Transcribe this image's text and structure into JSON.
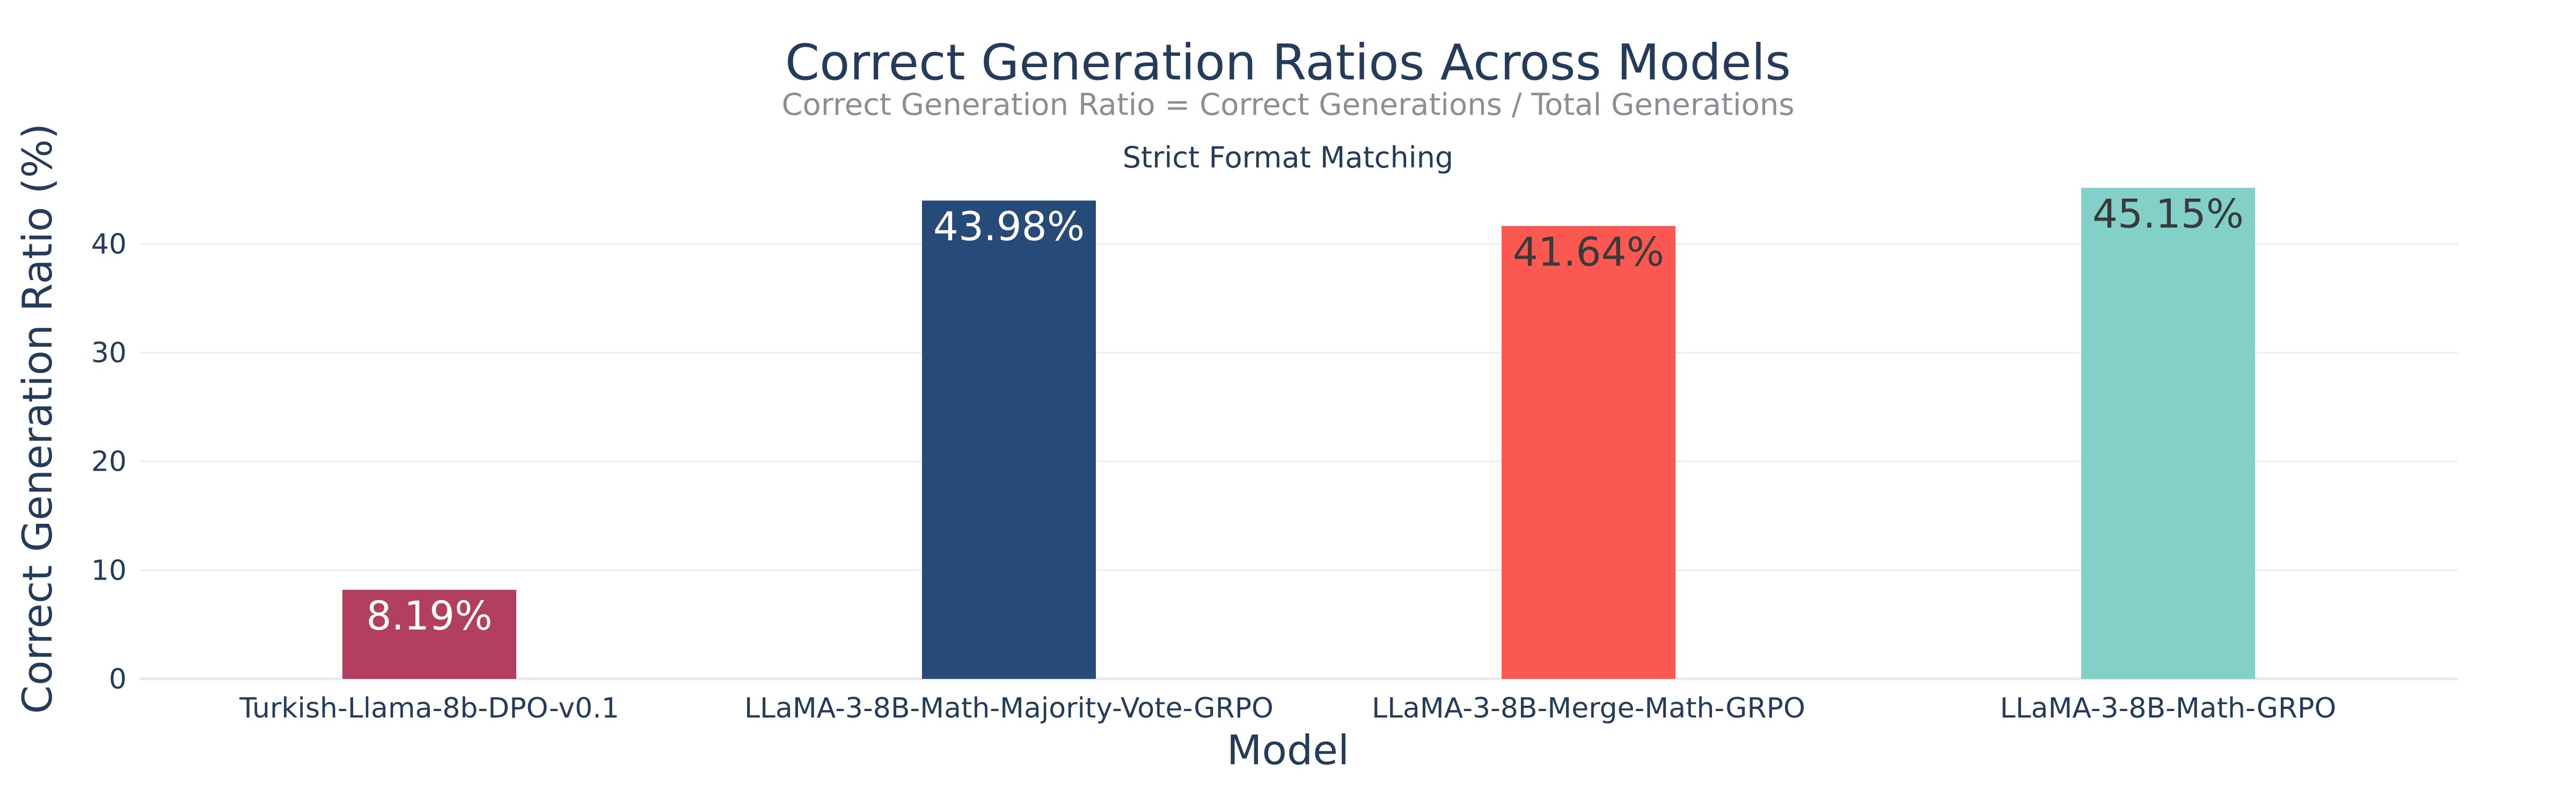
{
  "chart_data": {
    "type": "bar",
    "title": "Correct Generation Ratios Across Models",
    "subtitle": "Correct Generation Ratio = Correct Generations / Total Generations",
    "panel_title": "Strict Format Matching",
    "xlabel": "Model",
    "ylabel": "Correct Generation Ratio (%)",
    "categories": [
      "Turkish-Llama-8b-DPO-v0.1",
      "LLaMA-3-8B-Math-Majority-Vote-GRPO",
      "LLaMA-3-8B-Merge-Math-GRPO",
      "LLaMA-3-8B-Math-GRPO"
    ],
    "values": [
      8.19,
      43.98,
      41.64,
      45.15
    ],
    "data_labels": [
      "8.19%",
      "43.98%",
      "41.64%",
      "45.15%"
    ],
    "colors": [
      "#b23f60",
      "#264b78",
      "#fa5850",
      "#83d0c9"
    ],
    "label_colors": [
      "#ffffff",
      "#ffffff",
      "#3a3a3a",
      "#3a3a3a"
    ],
    "ylim": [
      0,
      45.15
    ],
    "yticks": [
      0,
      10,
      20,
      30,
      40
    ],
    "grid": true,
    "legend": "none"
  }
}
